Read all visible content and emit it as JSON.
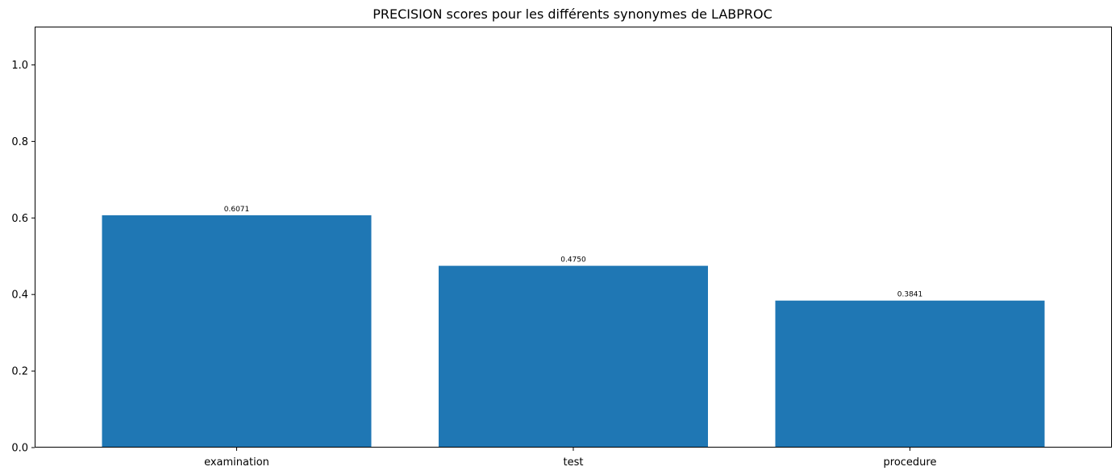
{
  "chart_data": {
    "type": "bar",
    "title": "PRECISION scores pour les différents synonymes de LABPROC",
    "xlabel": "",
    "ylabel": "",
    "categories": [
      "examination",
      "test",
      "procedure"
    ],
    "values": [
      0.6071,
      0.475,
      0.3841
    ],
    "data_labels": [
      "0.6071",
      "0.4750",
      "0.3841"
    ],
    "ylim": [
      0,
      1.1
    ],
    "yticks": [
      0.0,
      0.2,
      0.4,
      0.6,
      0.8,
      1.0
    ],
    "ytick_labels": [
      "0.0",
      "0.2",
      "0.4",
      "0.6",
      "0.8",
      "1.0"
    ],
    "grid": false,
    "colors": {
      "bar": "#1f77b4",
      "axis": "#000000",
      "background": "#ffffff"
    }
  }
}
